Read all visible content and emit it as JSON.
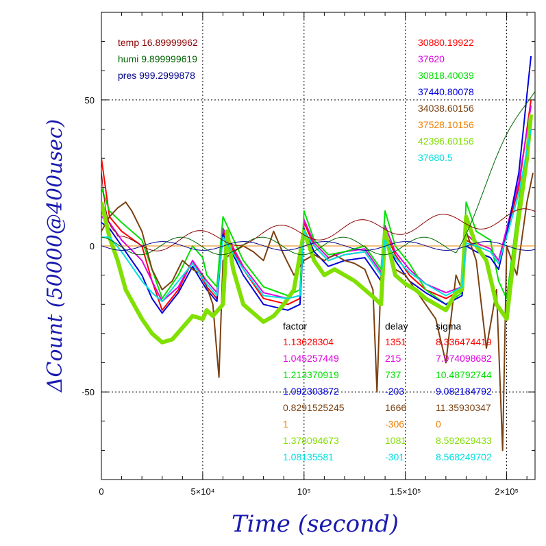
{
  "chart_data": {
    "type": "line",
    "xlabel": "Time (second)",
    "ylabel": "ΔCount (50000@400usec)",
    "xlim": [
      0,
      214000
    ],
    "ylim": [
      -80,
      80
    ],
    "x_ticks": [
      {
        "value": 0,
        "label": "0"
      },
      {
        "value": 50000,
        "label": "5×10⁴"
      },
      {
        "value": 100000,
        "label": "10⁵"
      },
      {
        "value": 150000,
        "label": "1.5×10⁵"
      },
      {
        "value": 200000,
        "label": "2×10⁵"
      }
    ],
    "y_ticks": [
      {
        "value": 50,
        "label": "50"
      },
      {
        "value": 0,
        "label": "0"
      },
      {
        "value": -50,
        "label": "-50"
      }
    ],
    "grid": true,
    "env": [
      {
        "label": "temp 16.89999962",
        "color": "#8b0000"
      },
      {
        "label": "humi 9.899999619",
        "color": "#006400"
      },
      {
        "label": "pres 999.2999878",
        "color": "#00008b"
      }
    ],
    "table_headers": {
      "factor": "factor",
      "delay": "delay",
      "sigma": "sigma"
    },
    "series": [
      {
        "base": "30880.19922",
        "factor": "1.13628304",
        "delay": "1351",
        "sigma": "8.336474419",
        "color": "#ff0000",
        "x": [
          0,
          4000,
          10000,
          20000,
          25000,
          30000,
          38000,
          45000,
          52000,
          57000,
          60000,
          70000,
          80000,
          92000,
          98000,
          100000,
          105000,
          112000,
          120000,
          130000,
          138000,
          140000,
          145000,
          152000,
          160000,
          170000,
          178000,
          180000,
          185000,
          192000,
          196000,
          200000,
          206000,
          212000
        ],
        "y": [
          30,
          10,
          5,
          0,
          -12,
          -22,
          -15,
          -5,
          -14,
          -18,
          5,
          -8,
          -18,
          -20,
          -18,
          8,
          0,
          -5,
          -3,
          -2,
          -10,
          5,
          -3,
          -10,
          -15,
          -18,
          -15,
          2,
          0,
          -2,
          -6,
          5,
          20,
          50
        ]
      },
      {
        "base": "37620",
        "factor": "1.045257449",
        "delay": "215",
        "sigma": "7.974098682",
        "color": "#e000e0",
        "x": [
          0,
          4000,
          10000,
          20000,
          25000,
          30000,
          38000,
          45000,
          52000,
          57000,
          60000,
          70000,
          80000,
          92000,
          98000,
          100000,
          105000,
          112000,
          120000,
          130000,
          138000,
          140000,
          145000,
          152000,
          160000,
          170000,
          178000,
          180000,
          185000,
          192000,
          196000,
          200000,
          206000,
          212000
        ],
        "y": [
          10,
          8,
          2,
          -5,
          -12,
          -19,
          -14,
          -5,
          -12,
          -16,
          6,
          -7,
          -16,
          -18,
          -17,
          9,
          1,
          -4,
          -2,
          -1,
          -9,
          7,
          -2,
          -8,
          -13,
          -16,
          -14,
          4,
          1,
          -1,
          -5,
          6,
          22,
          48
        ]
      },
      {
        "base": "30818.40039",
        "factor": "1.213370919",
        "delay": "737",
        "sigma": "10.48792744",
        "color": "#00e000",
        "x": [
          0,
          4000,
          10000,
          20000,
          25000,
          30000,
          38000,
          45000,
          50000,
          52000,
          57000,
          60000,
          70000,
          80000,
          92000,
          98000,
          100000,
          105000,
          112000,
          120000,
          130000,
          138000,
          140000,
          145000,
          152000,
          160000,
          170000,
          178000,
          180000,
          185000,
          192000,
          196000,
          200000,
          206000,
          212000
        ],
        "y": [
          20,
          12,
          8,
          2,
          -8,
          -18,
          -10,
          0,
          -4,
          -10,
          -14,
          10,
          -5,
          -14,
          -17,
          -15,
          12,
          2,
          -3,
          -2,
          0,
          -8,
          12,
          0,
          -6,
          -15,
          -20,
          -16,
          15,
          5,
          2,
          -12,
          -18,
          15,
          40
        ]
      },
      {
        "base": "37440.80078",
        "factor": "1.092303872",
        "delay": "-203",
        "sigma": "9.082184792",
        "color": "#0000dd",
        "x": [
          0,
          4000,
          10000,
          20000,
          25000,
          30000,
          38000,
          45000,
          52000,
          57000,
          60000,
          70000,
          80000,
          92000,
          98000,
          100000,
          105000,
          112000,
          120000,
          130000,
          138000,
          140000,
          145000,
          152000,
          160000,
          170000,
          178000,
          180000,
          185000,
          192000,
          196000,
          200000,
          206000,
          212000
        ],
        "y": [
          8,
          6,
          0,
          -10,
          -18,
          -23,
          -16,
          -7,
          -15,
          -19,
          4,
          -10,
          -20,
          -22,
          -20,
          6,
          -2,
          -7,
          -5,
          -4,
          -12,
          3,
          -5,
          -12,
          -16,
          -20,
          -17,
          0,
          -2,
          -4,
          -8,
          4,
          25,
          65
        ]
      },
      {
        "base": "34038.60156",
        "factor": "0.8291525245",
        "delay": "1666",
        "sigma": "11.35930347",
        "color": "#7a4010",
        "x": [
          0,
          4000,
          8000,
          12000,
          15000,
          20000,
          25000,
          30000,
          35000,
          40000,
          45000,
          50000,
          55000,
          58000,
          60000,
          65000,
          70000,
          75000,
          80000,
          85000,
          90000,
          95000,
          100000,
          105000,
          110000,
          115000,
          120000,
          125000,
          130000,
          134000,
          136000,
          138000,
          140000,
          145000,
          150000,
          155000,
          160000,
          165000,
          170000,
          175000,
          178000,
          180000,
          185000,
          190000,
          195000,
          198000,
          200000,
          205000,
          210000,
          213000
        ],
        "y": [
          5,
          10,
          13,
          15,
          12,
          5,
          -8,
          -15,
          -12,
          -5,
          -8,
          -10,
          -20,
          -45,
          -5,
          -2,
          0,
          -2,
          -5,
          5,
          -3,
          -10,
          -5,
          -3,
          -5,
          -3,
          -5,
          -6,
          -8,
          -15,
          -50,
          -10,
          5,
          -8,
          -10,
          -15,
          -20,
          -25,
          -40,
          -10,
          -15,
          5,
          -5,
          -35,
          -15,
          -70,
          0,
          -10,
          15,
          25
        ]
      },
      {
        "base": "37528.10156",
        "factor": "1",
        "delay": "-306",
        "sigma": "0",
        "color": "#ee8000",
        "x": [
          0,
          214000
        ],
        "y": [
          0,
          0
        ]
      },
      {
        "base": "42396.60156",
        "factor": "1.378094673",
        "delay": "1081",
        "sigma": "8.592629433",
        "color": "#80e000",
        "x": [
          0,
          4000,
          8000,
          12000,
          16000,
          20000,
          25000,
          30000,
          35000,
          40000,
          45000,
          50000,
          52000,
          55000,
          60000,
          62000,
          65000,
          70000,
          75000,
          80000,
          85000,
          90000,
          95000,
          100000,
          105000,
          110000,
          115000,
          120000,
          125000,
          130000,
          135000,
          138000,
          140000,
          145000,
          150000,
          155000,
          160000,
          165000,
          170000,
          175000,
          178000,
          180000,
          185000,
          190000,
          195000,
          200000,
          205000,
          210000,
          212000
        ],
        "y": [
          15,
          3,
          -5,
          -15,
          -20,
          -25,
          -30,
          -33,
          -32,
          -28,
          -24,
          -25,
          -22,
          -24,
          -20,
          5,
          -8,
          -20,
          -23,
          -26,
          -24,
          -20,
          -15,
          5,
          -5,
          -10,
          -8,
          -10,
          -12,
          -15,
          -18,
          -20,
          5,
          -10,
          -13,
          -15,
          -18,
          -20,
          -22,
          -16,
          -15,
          10,
          0,
          -5,
          -20,
          -25,
          5,
          30,
          45
        ]
      },
      {
        "base": "37680.5",
        "factor": "1.08135581",
        "delay": "-301",
        "sigma": "8.568249702",
        "color": "#00e0e0",
        "x": [
          0,
          4000,
          10000,
          20000,
          25000,
          30000,
          38000,
          45000,
          52000,
          57000,
          60000,
          70000,
          80000,
          92000,
          98000,
          100000,
          105000,
          112000,
          120000,
          130000,
          138000,
          140000,
          145000,
          152000,
          160000,
          170000,
          178000,
          180000,
          185000,
          192000,
          196000,
          200000,
          206000,
          212000
        ],
        "y": [
          3,
          3,
          -2,
          -12,
          -16,
          -19,
          -12,
          -6,
          -13,
          -17,
          3,
          -8,
          -17,
          -18,
          -17,
          5,
          0,
          -5,
          -3,
          -2,
          -10,
          2,
          -4,
          -9,
          -13,
          -17,
          -14,
          1,
          0,
          -2,
          -6,
          3,
          18,
          40
        ]
      }
    ],
    "env_series": [
      {
        "color": "#8b0000",
        "amp": 3,
        "period": 40000,
        "phase": 0.3,
        "trend_end": 10
      },
      {
        "color": "#006400",
        "amp": 3,
        "period": 40000,
        "phase": 1.7,
        "rise_start": 175000,
        "rise_end": 55
      },
      {
        "color": "#00008b",
        "amp": 1.5,
        "period": 40000,
        "phase": 3.1,
        "trend_end": 0
      }
    ]
  }
}
